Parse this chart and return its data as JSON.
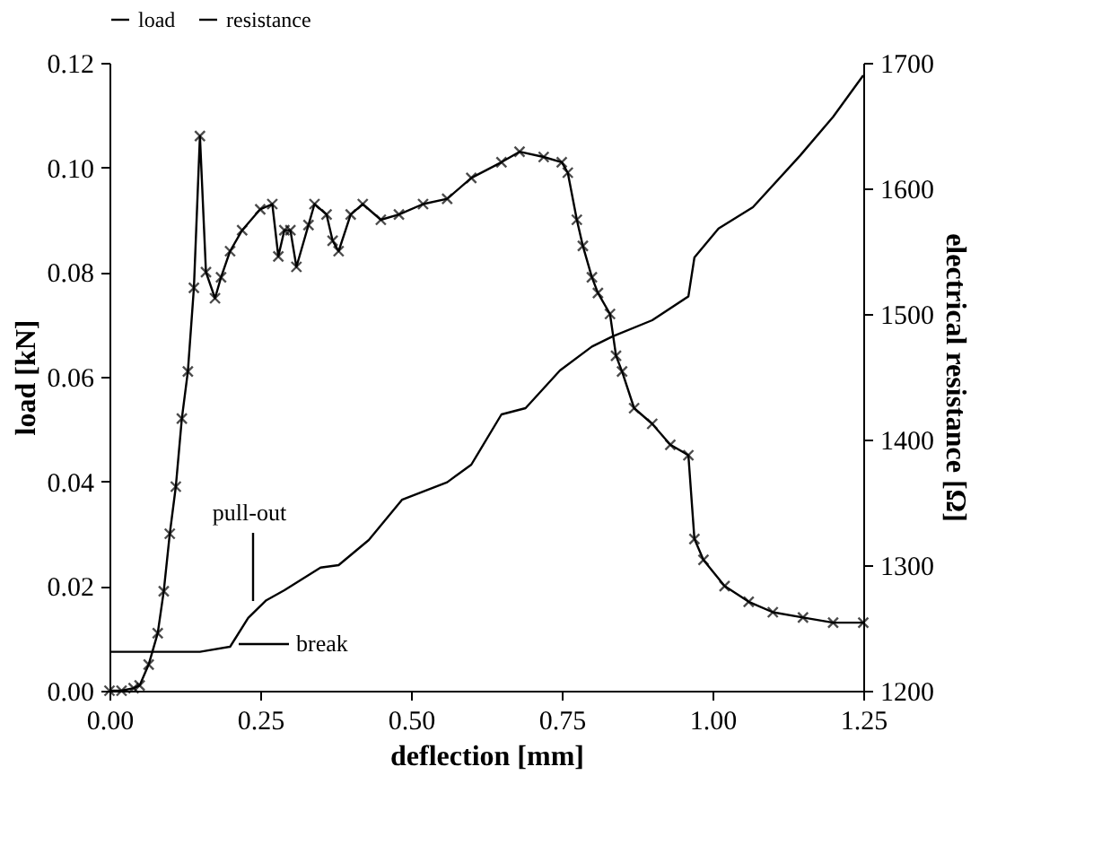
{
  "chart_data": {
    "type": "line",
    "xlabel": "deflection [mm]",
    "ylabel": "load [kN]",
    "y2label": "electrical resistance [Ω]",
    "xlim": [
      0,
      1.25
    ],
    "xticks": [
      {
        "value": 0,
        "label": "0.00"
      },
      0.25,
      {
        "value": 0.5,
        "label": "0.50"
      },
      0.75,
      {
        "value": 1,
        "label": "1.00"
      },
      1.25
    ],
    "ylim": [
      0,
      0.12
    ],
    "yticks": [
      {
        "value": 0,
        "label": "0.00"
      },
      0.02,
      0.04,
      0.06,
      0.08,
      {
        "value": 0.1,
        "label": "0.10"
      },
      0.12
    ],
    "y2lim": [
      1200,
      1700
    ],
    "y2ticks": [
      1200,
      1300,
      1400,
      1500,
      1600,
      1700
    ],
    "legend": "top",
    "grid": false,
    "line_style": "solid",
    "annotations": [
      "pull-out",
      "break"
    ],
    "series": [
      {
        "name": "load",
        "color": "#000000",
        "marker": "cross",
        "x": [
          0,
          0.02,
          0.04,
          0.05,
          0.065,
          0.08,
          0.09,
          0.1,
          0.11,
          0.12,
          0.13,
          0.14,
          0.15,
          0.16,
          0.175,
          0.185,
          0.2,
          0.22,
          0.25,
          0.27,
          0.28,
          0.29,
          0.3,
          0.31,
          0.33,
          0.34,
          0.36,
          0.37,
          0.38,
          0.4,
          0.42,
          0.45,
          0.48,
          0.52,
          0.56,
          0.6,
          0.65,
          0.68,
          0.72,
          0.75,
          0.76,
          0.775,
          0.785,
          0.8,
          0.81,
          0.83,
          0.84,
          0.85,
          0.87,
          0.9,
          0.93,
          0.96,
          0.97,
          0.985,
          1.02,
          1.06,
          1.1,
          1.15,
          1.2,
          1.25
        ],
        "values": [
          0,
          0,
          0.0005,
          0.001,
          0.005,
          0.011,
          0.019,
          0.03,
          0.039,
          0.052,
          0.061,
          0.077,
          0.106,
          0.08,
          0.075,
          0.079,
          0.084,
          0.088,
          0.092,
          0.093,
          0.083,
          0.088,
          0.088,
          0.081,
          0.089,
          0.093,
          0.091,
          0.086,
          0.084,
          0.091,
          0.093,
          0.09,
          0.091,
          0.093,
          0.094,
          0.098,
          0.101,
          0.103,
          0.102,
          0.101,
          0.099,
          0.09,
          0.085,
          0.079,
          0.076,
          0.072,
          0.064,
          0.061,
          0.054,
          0.051,
          0.047,
          0.045,
          0.029,
          0.025,
          0.02,
          0.017,
          0.015,
          0.014,
          0.013,
          0.013
        ]
      },
      {
        "name": "resistance",
        "color": "#000000",
        "marker": "none",
        "axis": "y2",
        "x": [
          0,
          0.15,
          0.2,
          0.23,
          0.26,
          0.29,
          0.35,
          0.38,
          0.43,
          0.485,
          0.56,
          0.6,
          0.65,
          0.69,
          0.747,
          0.8,
          0.834,
          0.9,
          0.96,
          0.97,
          1.01,
          1.067,
          1.145,
          1.2,
          1.25
        ],
        "values": [
          1231,
          1231,
          1235,
          1258,
          1272,
          1280,
          1298,
          1300,
          1320,
          1352,
          1366,
          1380,
          1420,
          1425,
          1455,
          1474,
          1482,
          1495,
          1514,
          1545,
          1568,
          1585,
          1626,
          1657,
          1690
        ]
      }
    ]
  }
}
